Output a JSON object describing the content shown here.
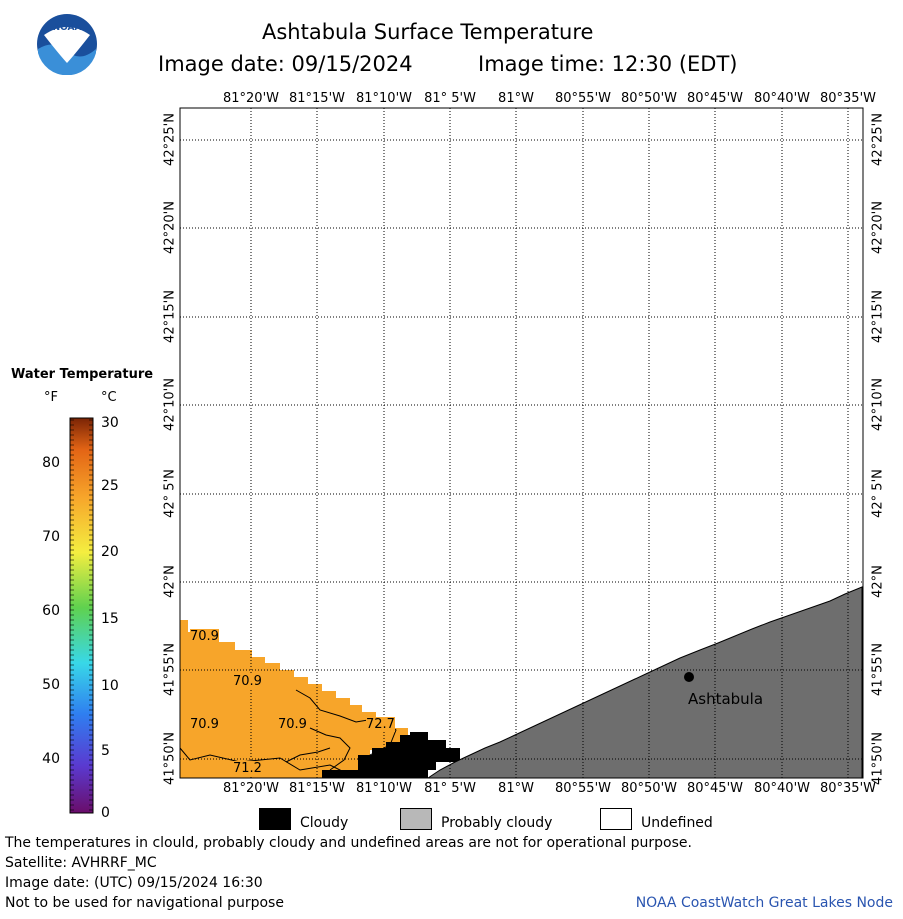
{
  "header": {
    "logo_text": "NOAA",
    "title": "Ashtabula Surface Temperature",
    "image_date": "Image date: 09/15/2024",
    "image_time": "Image time: 12:30 (EDT)"
  },
  "map": {
    "lon_labels": [
      "81°20'W",
      "81°15'W",
      "81°10'W",
      "81° 5'W",
      "81°W",
      "80°55'W",
      "80°50'W",
      "80°45'W",
      "80°40'W",
      "80°35'W"
    ],
    "lat_labels": [
      "42°25'N",
      "42°20'N",
      "42°15'N",
      "42°10'N",
      "42° 5'N",
      "42°N",
      "41°55'N",
      "41°50'N"
    ],
    "city": "Ashtabula",
    "temp_labels": [
      "70.9",
      "70.9",
      "70.9",
      "70.9",
      "72.7",
      "71.2"
    ],
    "colors": {
      "water": "#f7a52a",
      "cloudy": "#000000",
      "land": "#6e6e6e"
    }
  },
  "legend": {
    "title": "Water Temperature",
    "unit_f": "°F",
    "unit_c": "°C",
    "f_ticks": [
      "80",
      "70",
      "60",
      "50",
      "40"
    ],
    "c_ticks": [
      "30",
      "25",
      "20",
      "15",
      "10",
      "5",
      "0"
    ]
  },
  "key": {
    "cloudy": "Cloudy",
    "probably_cloudy": "Probably cloudy",
    "undefined": "Undefined"
  },
  "footer": {
    "line1": "The temperatures in clould, probably cloudy and undefined areas are not for operational purpose.",
    "line2": "Satellite: AVHRRF_MC",
    "line3": "Image date: (UTC) 09/15/2024  16:30",
    "line4": "Not to be used for navigational purpose",
    "credit": "NOAA CoastWatch Great Lakes Node"
  }
}
